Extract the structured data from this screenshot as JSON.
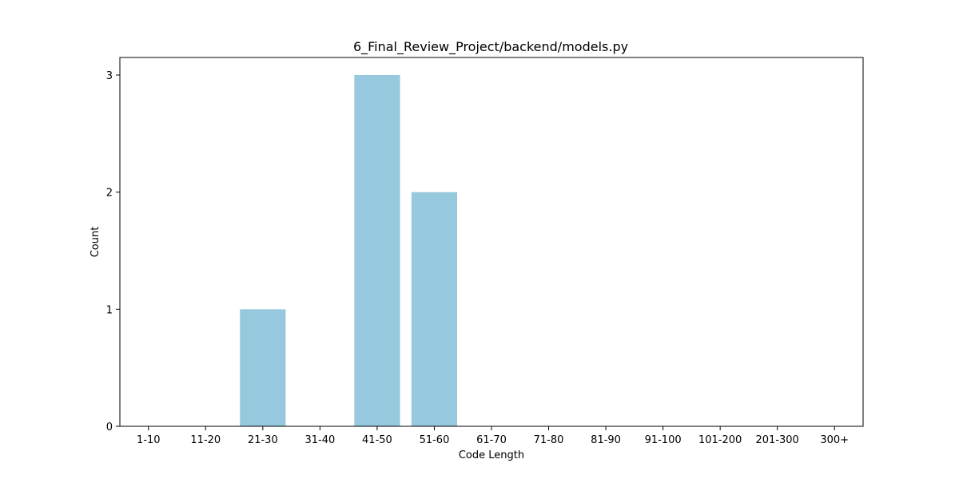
{
  "chart_data": {
    "type": "bar",
    "title": "6_Final_Review_Project/backend/models.py",
    "xlabel": "Code Length",
    "ylabel": "Count",
    "categories": [
      "1-10",
      "11-20",
      "21-30",
      "31-40",
      "41-50",
      "51-60",
      "61-70",
      "71-80",
      "81-90",
      "91-100",
      "101-200",
      "201-300",
      "300+"
    ],
    "values": [
      0,
      0,
      1,
      0,
      3,
      2,
      0,
      0,
      0,
      0,
      0,
      0,
      0
    ],
    "ylim": [
      0,
      3.15
    ],
    "yticks": [
      "0",
      "1",
      "2",
      "3"
    ],
    "bar_color": "#96c9dd",
    "grid": false,
    "legend": "none"
  }
}
